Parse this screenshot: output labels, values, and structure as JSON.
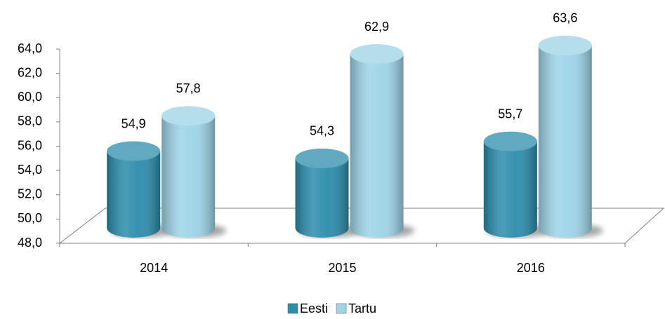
{
  "chart_data": {
    "type": "bar3d",
    "categories": [
      "2014",
      "2015",
      "2016"
    ],
    "series": [
      {
        "name": "Eesti",
        "color": "#2b8cab",
        "values": [
          54.9,
          54.3,
          55.7
        ],
        "value_labels": [
          "54,9",
          "54,3",
          "55,7"
        ]
      },
      {
        "name": "Tartu",
        "color": "#9dd3e6",
        "values": [
          57.8,
          62.9,
          63.6
        ],
        "value_labels": [
          "57,8",
          "62,9",
          "63,6"
        ]
      }
    ],
    "ylim": [
      48,
      64
    ],
    "yticks": [
      {
        "value": 48,
        "label": "48,0"
      },
      {
        "value": 50,
        "label": "50,0"
      },
      {
        "value": 52,
        "label": "52,0"
      },
      {
        "value": 54,
        "label": "54,0"
      },
      {
        "value": 56,
        "label": "56,0"
      },
      {
        "value": 58,
        "label": "58,0"
      },
      {
        "value": 60,
        "label": "60,0"
      },
      {
        "value": 62,
        "label": "62,0"
      },
      {
        "value": 64,
        "label": "64,0"
      }
    ],
    "legend": "bottom"
  }
}
